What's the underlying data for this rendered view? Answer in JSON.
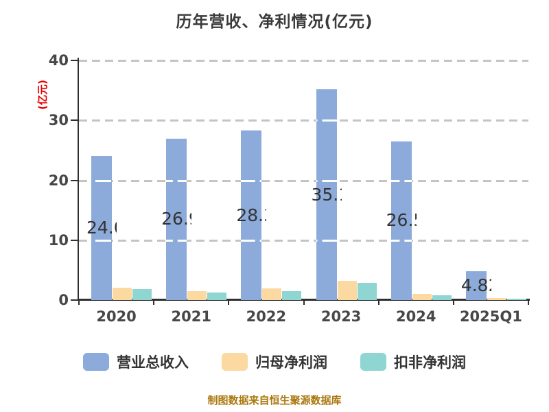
{
  "title": "历年营收、净利情况(亿元)",
  "y_axis_label": "(亿元)",
  "footer": "制图数据来自恒生聚源数据库",
  "colors": {
    "revenue_bar": "#8cabdb",
    "net_profit_bar": "#fbd9a0",
    "deducted_profit_bar": "#8fd6d2",
    "grid_back": "#c4c4c4",
    "grid_front": "#ffffff",
    "axis": "#2f2f2f",
    "title_text": "#3a3a3a",
    "tick_text": "#474747",
    "y_axis_label_text": "#ec0000",
    "footer_text": "#a9780d",
    "value_label_text": "#333333"
  },
  "chart_data": {
    "type": "bar",
    "title": "历年营收、净利情况(亿元)",
    "xlabel": "",
    "ylabel": "(亿元)",
    "categories": [
      "2020",
      "2021",
      "2022",
      "2023",
      "2024",
      "2025Q1"
    ],
    "series": [
      {
        "name": "营业总收入",
        "color": "#8cabdb",
        "values": [
          24.06,
          26.99,
          28.3,
          35.15,
          26.51,
          4.82
        ],
        "labels": [
          "24.06",
          "26.99",
          "28.30",
          "35.15",
          "26.51",
          "4.82"
        ]
      },
      {
        "name": "归母净利润",
        "color": "#fbd9a0",
        "values": [
          2.1,
          1.5,
          1.9,
          3.2,
          1.0,
          0.3
        ]
      },
      {
        "name": "扣非净利润",
        "color": "#8fd6d2",
        "values": [
          1.8,
          1.3,
          1.5,
          2.9,
          0.8,
          0.25
        ]
      }
    ],
    "ylim": [
      0,
      40
    ],
    "yticks": [
      0,
      10,
      20,
      30,
      40
    ],
    "grid": "horizontal dashed",
    "legend_position": "bottom",
    "value_labels_series": "营业总收入"
  },
  "legend": {
    "items": [
      {
        "label": "营业总收入",
        "color": "#8cabdb"
      },
      {
        "label": "归母净利润",
        "color": "#fbd9a0"
      },
      {
        "label": "扣非净利润",
        "color": "#8fd6d2"
      }
    ]
  }
}
